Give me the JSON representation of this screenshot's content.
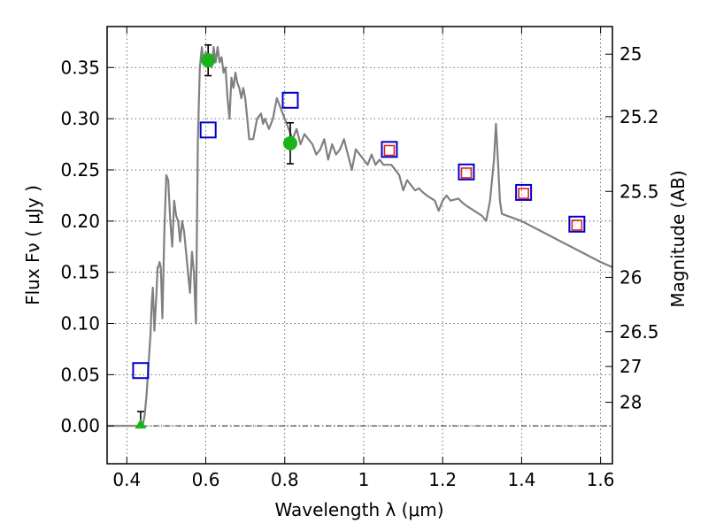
{
  "chart_data": {
    "type": "scatter",
    "xlabel": "Wavelength  λ (μm)",
    "ylabel": "Flux  Fν  ( μJy )",
    "ylabel_right": "Magnitude (AB)",
    "xlim": [
      0.35,
      1.63
    ],
    "ylim": [
      -0.037,
      0.39
    ],
    "grid": true,
    "x_ticks": [
      0.4,
      0.6,
      0.8,
      1.0,
      1.2,
      1.4,
      1.6
    ],
    "x_tick_labels": [
      "0.4",
      "0.6",
      "0.8",
      "1",
      "1.2",
      "1.4",
      "1.6"
    ],
    "y_ticks": [
      0.0,
      0.05,
      0.1,
      0.15,
      0.2,
      0.25,
      0.3,
      0.35
    ],
    "y_tick_labels": [
      "0.00",
      "0.05",
      "0.10",
      "0.15",
      "0.20",
      "0.25",
      "0.30",
      "0.35"
    ],
    "right_ticks": [
      {
        "flux": 0.363,
        "label": "25"
      },
      {
        "flux": 0.302,
        "label": "25.2"
      },
      {
        "flux": 0.229,
        "label": "25.5"
      },
      {
        "flux": 0.145,
        "label": "26"
      },
      {
        "flux": 0.092,
        "label": "26.5"
      },
      {
        "flux": 0.058,
        "label": "27"
      },
      {
        "flux": 0.023,
        "label": "28"
      }
    ],
    "zero_line": true,
    "series": [
      {
        "kind": "model_spectrum",
        "color": "#808080",
        "x": [
          0.35,
          0.42,
          0.44,
          0.445,
          0.45,
          0.455,
          0.46,
          0.463,
          0.466,
          0.47,
          0.475,
          0.478,
          0.48,
          0.483,
          0.486,
          0.49,
          0.495,
          0.5,
          0.505,
          0.51,
          0.515,
          0.52,
          0.525,
          0.53,
          0.535,
          0.54,
          0.545,
          0.55,
          0.555,
          0.56,
          0.565,
          0.57,
          0.575,
          0.58,
          0.585,
          0.59,
          0.595,
          0.6,
          0.605,
          0.61,
          0.615,
          0.62,
          0.625,
          0.63,
          0.635,
          0.64,
          0.645,
          0.65,
          0.655,
          0.66,
          0.665,
          0.67,
          0.675,
          0.68,
          0.685,
          0.69,
          0.695,
          0.7,
          0.705,
          0.71,
          0.72,
          0.73,
          0.74,
          0.745,
          0.75,
          0.76,
          0.77,
          0.78,
          0.79,
          0.8,
          0.81,
          0.82,
          0.83,
          0.84,
          0.85,
          0.86,
          0.87,
          0.88,
          0.89,
          0.9,
          0.91,
          0.92,
          0.93,
          0.94,
          0.95,
          0.96,
          0.97,
          0.98,
          0.99,
          1.0,
          1.01,
          1.02,
          1.03,
          1.04,
          1.05,
          1.07,
          1.09,
          1.1,
          1.11,
          1.12,
          1.13,
          1.14,
          1.15,
          1.16,
          1.18,
          1.19,
          1.2,
          1.21,
          1.22,
          1.24,
          1.25,
          1.26,
          1.28,
          1.3,
          1.31,
          1.32,
          1.33,
          1.335,
          1.34,
          1.345,
          1.35,
          1.4,
          1.45,
          1.5,
          1.55,
          1.6,
          1.63
        ],
        "y": [
          0.0,
          0.0,
          0.0,
          0.01,
          0.03,
          0.06,
          0.09,
          0.12,
          0.135,
          0.093,
          0.13,
          0.155,
          0.155,
          0.16,
          0.155,
          0.105,
          0.19,
          0.245,
          0.24,
          0.2,
          0.175,
          0.22,
          0.205,
          0.2,
          0.18,
          0.2,
          0.19,
          0.17,
          0.15,
          0.13,
          0.17,
          0.15,
          0.1,
          0.28,
          0.35,
          0.37,
          0.355,
          0.365,
          0.358,
          0.36,
          0.35,
          0.37,
          0.355,
          0.37,
          0.355,
          0.36,
          0.345,
          0.35,
          0.32,
          0.3,
          0.34,
          0.33,
          0.345,
          0.335,
          0.33,
          0.32,
          0.33,
          0.32,
          0.3,
          0.28,
          0.28,
          0.3,
          0.305,
          0.295,
          0.3,
          0.29,
          0.3,
          0.32,
          0.31,
          0.3,
          0.29,
          0.28,
          0.29,
          0.275,
          0.285,
          0.28,
          0.275,
          0.265,
          0.27,
          0.28,
          0.26,
          0.275,
          0.265,
          0.27,
          0.28,
          0.265,
          0.25,
          0.27,
          0.265,
          0.26,
          0.255,
          0.265,
          0.255,
          0.26,
          0.255,
          0.255,
          0.245,
          0.23,
          0.24,
          0.235,
          0.23,
          0.232,
          0.228,
          0.225,
          0.22,
          0.21,
          0.22,
          0.225,
          0.22,
          0.222,
          0.218,
          0.215,
          0.21,
          0.205,
          0.2,
          0.22,
          0.26,
          0.295,
          0.26,
          0.22,
          0.207,
          0.2,
          0.19,
          0.18,
          0.17,
          0.16,
          0.155
        ]
      },
      {
        "kind": "observed_detection",
        "marker": "circle",
        "color": "#1ab31a",
        "points": [
          {
            "x": 0.606,
            "y": 0.357,
            "err_lo": 0.015,
            "err_hi": 0.015
          },
          {
            "x": 0.814,
            "y": 0.276,
            "err_lo": 0.02,
            "err_hi": 0.02
          }
        ]
      },
      {
        "kind": "observed_upper_limit",
        "marker": "triangle",
        "color": "#1ab31a",
        "points": [
          {
            "x": 0.435,
            "y": 0.0,
            "err_lo": 0.0,
            "err_hi": 0.014
          }
        ]
      },
      {
        "kind": "model_photometry",
        "marker": "square",
        "color": "#0000cc",
        "points": [
          {
            "x": 0.435,
            "y": 0.054
          },
          {
            "x": 0.606,
            "y": 0.289
          },
          {
            "x": 0.814,
            "y": 0.318
          },
          {
            "x": 1.065,
            "y": 0.27
          },
          {
            "x": 1.26,
            "y": 0.248
          },
          {
            "x": 1.405,
            "y": 0.228
          },
          {
            "x": 1.54,
            "y": 0.197
          }
        ]
      },
      {
        "kind": "photometry_inner",
        "marker": "square",
        "color": "#dd2222",
        "points": [
          {
            "x": 1.065,
            "y": 0.269
          },
          {
            "x": 1.26,
            "y": 0.247
          },
          {
            "x": 1.405,
            "y": 0.227
          },
          {
            "x": 1.54,
            "y": 0.196
          }
        ]
      }
    ]
  }
}
